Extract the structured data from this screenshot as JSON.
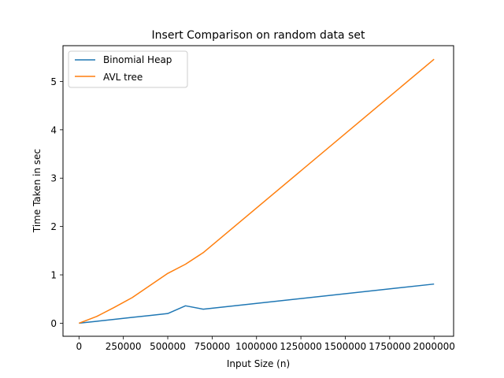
{
  "chart_data": {
    "type": "line",
    "title": "Insert Comparison on random data set",
    "xlabel": "Input Size (n)",
    "ylabel": "Time Taken in sec",
    "xlim": [
      -90000,
      2110000
    ],
    "ylim": [
      -0.27,
      5.74
    ],
    "xticks": [
      0,
      250000,
      500000,
      750000,
      1000000,
      1250000,
      1500000,
      1750000,
      2000000
    ],
    "yticks": [
      0,
      1,
      2,
      3,
      4,
      5
    ],
    "legend_position": "upper-left",
    "grid": false,
    "series": [
      {
        "name": "Binomial Heap",
        "color": "#1f77b4",
        "x": [
          0,
          100000,
          200000,
          300000,
          400000,
          500000,
          600000,
          700000,
          2000000
        ],
        "y": [
          0.0,
          0.04,
          0.08,
          0.12,
          0.16,
          0.2,
          0.36,
          0.29,
          0.81
        ]
      },
      {
        "name": "AVL tree",
        "color": "#ff7f0e",
        "x": [
          0,
          100000,
          200000,
          300000,
          400000,
          500000,
          600000,
          700000,
          2000000
        ],
        "y": [
          0.0,
          0.14,
          0.33,
          0.53,
          0.78,
          1.03,
          1.22,
          1.46,
          5.46
        ]
      }
    ]
  }
}
